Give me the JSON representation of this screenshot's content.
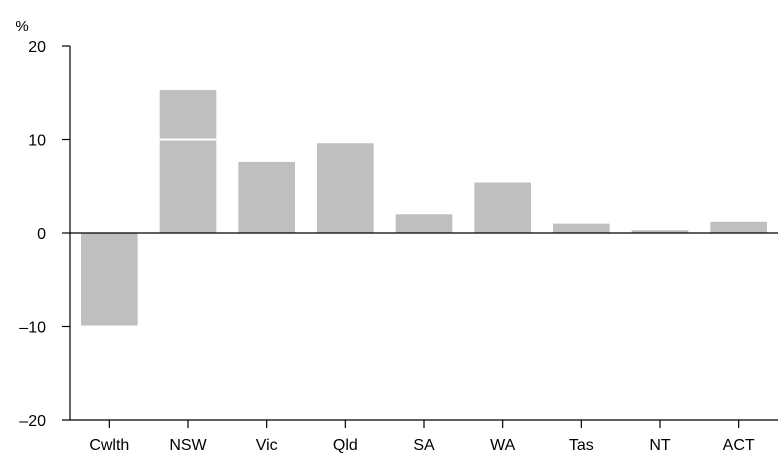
{
  "chart_data": {
    "type": "bar",
    "title": "",
    "xlabel": "",
    "ylabel": "%",
    "ylim": [
      -20,
      20
    ],
    "yticks": [
      -20,
      -10,
      0,
      10,
      20
    ],
    "ytick_labels": [
      "–20",
      "–10",
      "0",
      "10",
      "20"
    ],
    "categories": [
      "Cwlth",
      "NSW",
      "Vic",
      "Qld",
      "SA",
      "WA",
      "Tas",
      "NT",
      "ACT"
    ],
    "values": [
      -9.9,
      15.3,
      7.6,
      9.6,
      2.0,
      5.4,
      1.0,
      0.3,
      1.2
    ],
    "divider_lines": [
      {
        "category": "NSW",
        "value": 10
      }
    ],
    "bar_color": "#bfbfbf",
    "axis_color": "#000000",
    "grid": false,
    "legend": "none"
  }
}
